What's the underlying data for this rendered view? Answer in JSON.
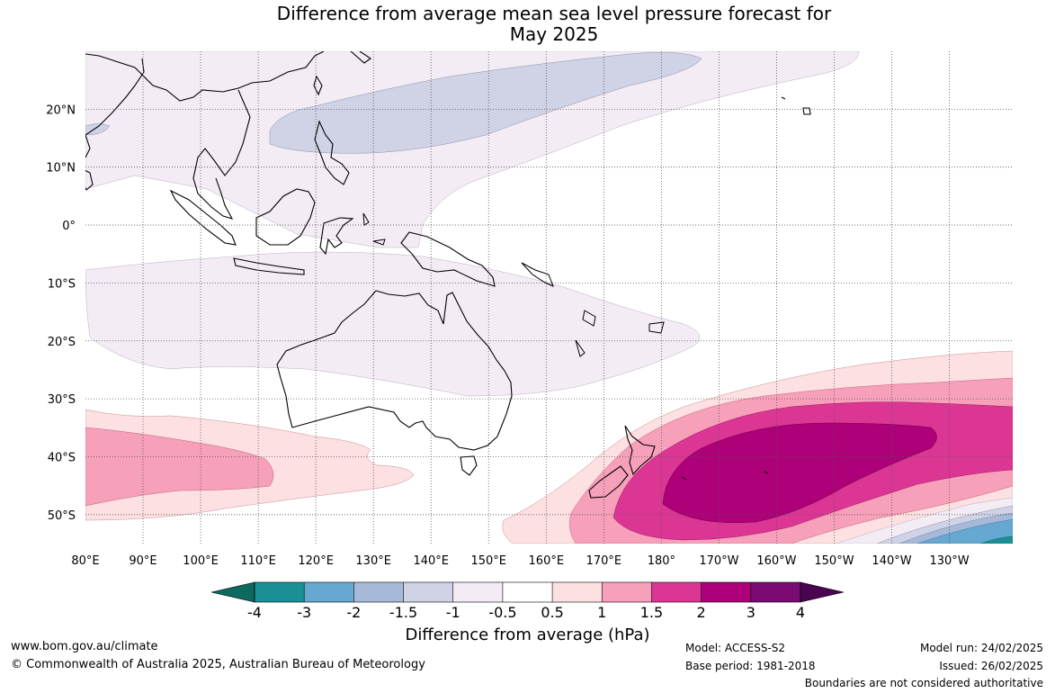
{
  "title": {
    "line1": "Difference from average mean sea level pressure forecast for",
    "line2": "May 2025"
  },
  "map": {
    "lon_range": [
      80,
      241
    ],
    "lat_range": [
      -55,
      30
    ],
    "lon_ticks": [
      {
        "value": 80,
        "label": "80°E"
      },
      {
        "value": 90,
        "label": "90°E"
      },
      {
        "value": 100,
        "label": "100°E"
      },
      {
        "value": 110,
        "label": "110°E"
      },
      {
        "value": 120,
        "label": "120°E"
      },
      {
        "value": 130,
        "label": "130°E"
      },
      {
        "value": 140,
        "label": "140°E"
      },
      {
        "value": 150,
        "label": "150°E"
      },
      {
        "value": 160,
        "label": "160°E"
      },
      {
        "value": 170,
        "label": "170°E"
      },
      {
        "value": 180,
        "label": "180°"
      },
      {
        "value": 190,
        "label": "170°W"
      },
      {
        "value": 200,
        "label": "160°W"
      },
      {
        "value": 210,
        "label": "150°W"
      },
      {
        "value": 220,
        "label": "140°W"
      },
      {
        "value": 230,
        "label": "130°W"
      }
    ],
    "lat_ticks": [
      {
        "value": 20,
        "label": "20°N"
      },
      {
        "value": 10,
        "label": "10°N"
      },
      {
        "value": 0,
        "label": "0°"
      },
      {
        "value": -10,
        "label": "10°S"
      },
      {
        "value": -20,
        "label": "20°S"
      },
      {
        "value": -30,
        "label": "30°S"
      },
      {
        "value": -40,
        "label": "40°S"
      },
      {
        "value": -50,
        "label": "50°S"
      }
    ],
    "grid": true
  },
  "colorbar": {
    "title": "Difference from average (hPa)",
    "labels": [
      "-4",
      "-3",
      "-2",
      "-1.5",
      "-1",
      "-0.5",
      "0.5",
      "1",
      "1.5",
      "2",
      "3",
      "4"
    ],
    "colors": [
      "#0c6b5e",
      "#1a9096",
      "#66a8d0",
      "#a7b9d9",
      "#d0d2e6",
      "#f3ecf5",
      "#ffffff",
      "#fde0e2",
      "#f7a0b9",
      "#dc3694",
      "#ad0079",
      "#7b0a73",
      "#4a0450"
    ]
  },
  "footer": {
    "url": "www.bom.gov.au/climate",
    "copyright": "© Commonwealth of Australia 2025, Australian Bureau of Meteorology",
    "model": "Model: ACCESS-S2",
    "base_period": "Base period: 1981-2018",
    "model_run": "Model run: 24/02/2025",
    "issued": "Issued: 26/02/2025",
    "disclaimer": "Boundaries are not considered authoritative"
  }
}
